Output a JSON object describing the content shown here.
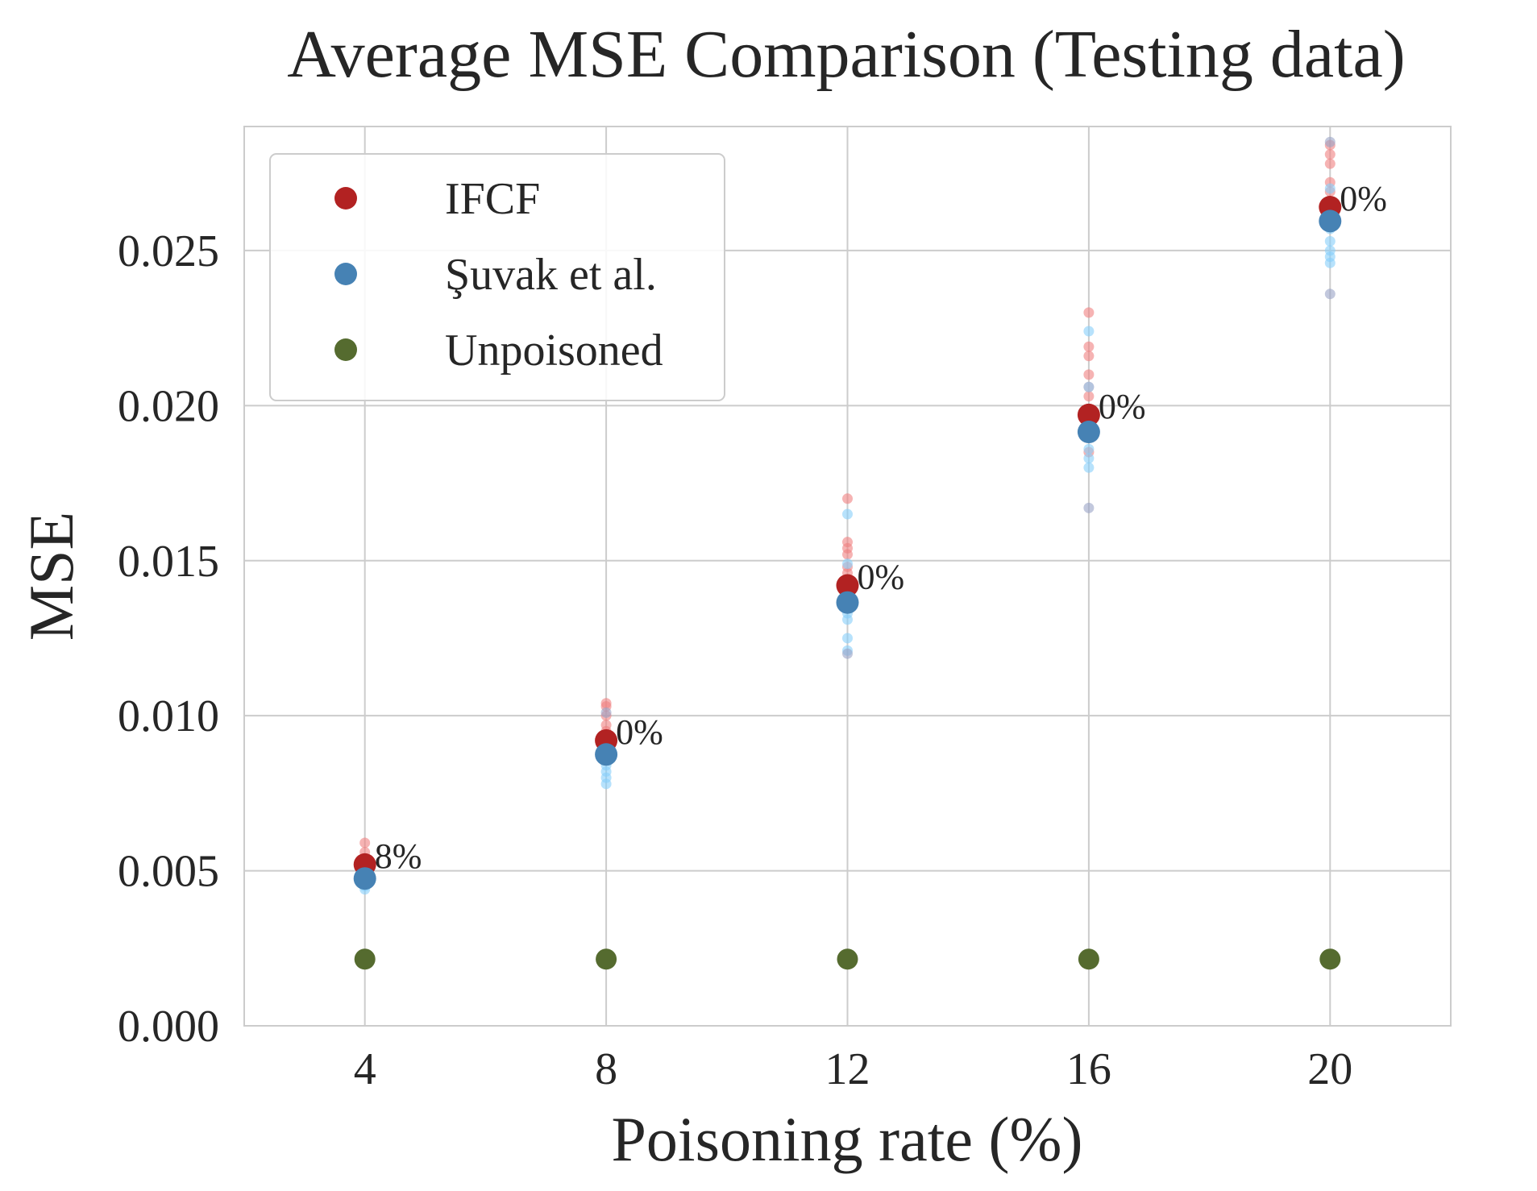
{
  "chart_data": {
    "type": "scatter",
    "title": "Average MSE Comparison (Testing data)",
    "xlabel": "Poisoning rate (%)",
    "ylabel": "MSE",
    "x_ticks": [
      4,
      8,
      12,
      16,
      20
    ],
    "x_tick_labels": [
      "4",
      "8",
      "12",
      "16",
      "20"
    ],
    "y_ticks": [
      0.0,
      0.005,
      0.01,
      0.015,
      0.02,
      0.025
    ],
    "y_tick_labels": [
      "0.000",
      "0.005",
      "0.010",
      "0.015",
      "0.020",
      "0.025"
    ],
    "xlim": [
      2,
      22
    ],
    "ylim": [
      0,
      0.029
    ],
    "grid": true,
    "legend": "top-left",
    "series": [
      {
        "name": "IFCF",
        "color": "#b22222",
        "x": [
          4,
          8,
          12,
          16,
          20
        ],
        "y": [
          0.0052,
          0.0092,
          0.0142,
          0.0197,
          0.0264
        ]
      },
      {
        "name": "Şuvak et al.",
        "color": "#4682b4",
        "x": [
          4,
          8,
          12,
          16,
          20
        ],
        "y": [
          0.00475,
          0.00875,
          0.01365,
          0.01915,
          0.02595
        ]
      },
      {
        "name": "Unpoisoned",
        "color": "#556b2f",
        "x": [
          4,
          8,
          12,
          16,
          20
        ],
        "y": [
          0.00215,
          0.00215,
          0.00215,
          0.00215,
          0.00215
        ]
      }
    ],
    "annotations": [
      {
        "x": 4,
        "y": 0.0052,
        "text": "8%"
      },
      {
        "x": 8,
        "y": 0.0092,
        "text": "0%"
      },
      {
        "x": 12,
        "y": 0.0142,
        "text": "0%"
      },
      {
        "x": 16,
        "y": 0.0197,
        "text": "0%"
      },
      {
        "x": 20,
        "y": 0.0264,
        "text": "0%"
      }
    ],
    "faint_points": {
      "ifcf_runs": {
        "color": "#f08080",
        "points": [
          [
            4,
            0.0059
          ],
          [
            4,
            0.0056
          ],
          [
            4,
            0.0054
          ],
          [
            4,
            0.0053
          ],
          [
            8,
            0.0104
          ],
          [
            8,
            0.0103
          ],
          [
            8,
            0.01
          ],
          [
            8,
            0.0097
          ],
          [
            8,
            0.0095
          ],
          [
            12,
            0.017
          ],
          [
            12,
            0.0156
          ],
          [
            12,
            0.0154
          ],
          [
            12,
            0.0152
          ],
          [
            12,
            0.0148
          ],
          [
            12,
            0.0146
          ],
          [
            16,
            0.023
          ],
          [
            16,
            0.0219
          ],
          [
            16,
            0.0216
          ],
          [
            16,
            0.021
          ],
          [
            16,
            0.0206
          ],
          [
            16,
            0.0203
          ],
          [
            16,
            0.0185
          ],
          [
            20,
            0.0284
          ],
          [
            20,
            0.0281
          ],
          [
            20,
            0.0278
          ],
          [
            20,
            0.0272
          ],
          [
            20,
            0.0269
          ],
          [
            20,
            0.0258
          ]
        ]
      },
      "suvak_runs": {
        "color": "#87cefa",
        "points": [
          [
            4,
            0.0046
          ],
          [
            4,
            0.0045
          ],
          [
            4,
            0.0044
          ],
          [
            8,
            0.0084
          ],
          [
            8,
            0.0082
          ],
          [
            8,
            0.008
          ],
          [
            8,
            0.0078
          ],
          [
            12,
            0.0165
          ],
          [
            12,
            0.0149
          ],
          [
            12,
            0.0135
          ],
          [
            12,
            0.0133
          ],
          [
            12,
            0.0131
          ],
          [
            12,
            0.0125
          ],
          [
            12,
            0.0121
          ],
          [
            16,
            0.0224
          ],
          [
            16,
            0.0206
          ],
          [
            16,
            0.019
          ],
          [
            16,
            0.0186
          ],
          [
            16,
            0.0183
          ],
          [
            16,
            0.018
          ],
          [
            20,
            0.027
          ],
          [
            20,
            0.0257
          ],
          [
            20,
            0.0253
          ],
          [
            20,
            0.025
          ],
          [
            20,
            0.0248
          ],
          [
            20,
            0.0246
          ]
        ]
      },
      "overlap_runs": {
        "color": "#9aa3c6",
        "points": [
          [
            8,
            0.0101
          ],
          [
            12,
            0.012
          ],
          [
            16,
            0.0167
          ],
          [
            20,
            0.0285
          ],
          [
            20,
            0.0236
          ]
        ]
      }
    }
  }
}
